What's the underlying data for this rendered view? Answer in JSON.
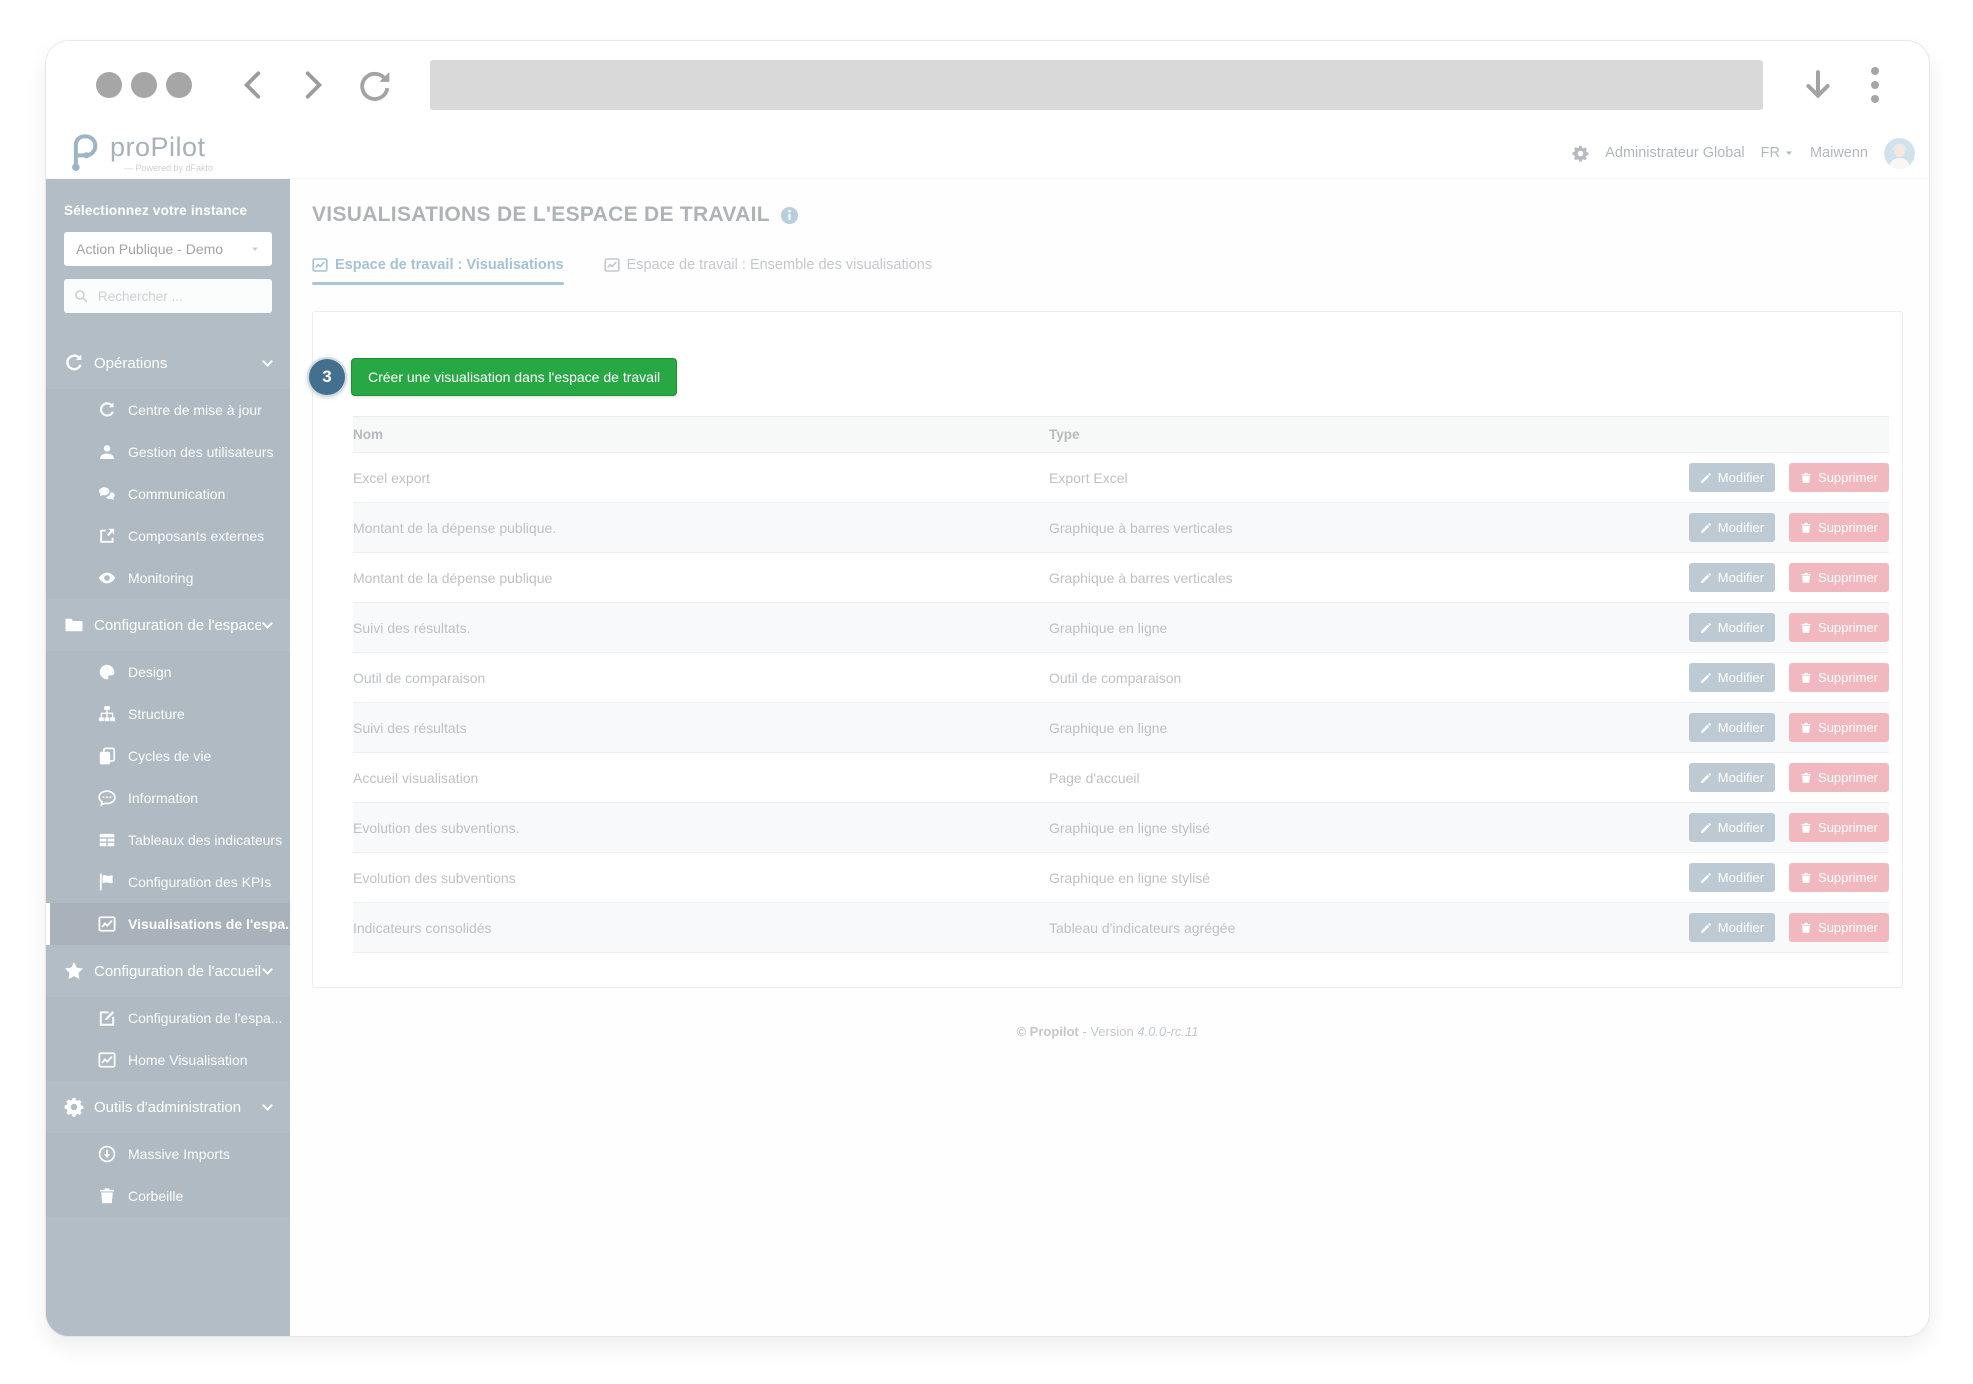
{
  "colors": {
    "green": "#28a745",
    "green-border": "#1f9038",
    "badge": "#44708f",
    "danger": "#e5717f",
    "secondary": "#7a94a8",
    "sidebar": "#657b8d",
    "accent": "#4785ad",
    "underline": "#558fb3"
  },
  "header": {
    "logo_text": "proPilot",
    "logo_tagline": "Powered by dFakto",
    "role_label": "Administrateur Global",
    "lang_label": "FR",
    "user_name": "Maiwenn"
  },
  "sidebar": {
    "instance_label": "Sélectionnez votre instance",
    "instance_value": "Action Publique - Demo",
    "search_placeholder": "Rechercher ...",
    "groups": [
      {
        "label": "Opérations",
        "icon": "refresh",
        "items": [
          {
            "label": "Centre de mise à jour",
            "icon": "update"
          },
          {
            "label": "Gestion des utilisateurs",
            "icon": "user"
          },
          {
            "label": "Communication",
            "icon": "chat"
          },
          {
            "label": "Composants externes",
            "icon": "external"
          },
          {
            "label": "Monitoring",
            "icon": "eye"
          }
        ]
      },
      {
        "label": "Configuration de l'espace de ...",
        "icon": "folder",
        "items": [
          {
            "label": "Design",
            "icon": "palette"
          },
          {
            "label": "Structure",
            "icon": "sitemap"
          },
          {
            "label": "Cycles de vie",
            "icon": "copy"
          },
          {
            "label": "Information",
            "icon": "info-bubble"
          },
          {
            "label": "Tableaux des indicateurs",
            "icon": "table"
          },
          {
            "label": "Configuration des KPIs",
            "icon": "flag"
          },
          {
            "label": "Visualisations de l'espa...",
            "icon": "chart",
            "active": true
          }
        ]
      },
      {
        "label": "Configuration de l'accueil",
        "icon": "star",
        "items": [
          {
            "label": "Configuration de l'espa...",
            "icon": "edit"
          },
          {
            "label": "Home Visualisation",
            "icon": "chart"
          }
        ]
      },
      {
        "label": "Outils d'administration",
        "icon": "gear",
        "items": [
          {
            "label": "Massive Imports",
            "icon": "download-circle"
          },
          {
            "label": "Corbeille",
            "icon": "trash"
          }
        ]
      }
    ]
  },
  "main": {
    "title": "VISUALISATIONS DE L'ESPACE DE TRAVAIL",
    "tabs": [
      {
        "label": "Espace de travail : Visualisations",
        "active": true
      },
      {
        "label": "Espace de travail : Ensemble des visualisations",
        "active": false
      }
    ],
    "step_badge": "3",
    "create_button_label": "Créer une visualisation dans l'espace de travail",
    "table": {
      "col_nom": "Nom",
      "col_type": "Type",
      "modifier_label": "Modifier",
      "supprimer_label": "Supprimer",
      "rows": [
        {
          "nom": "Excel export",
          "type": "Export Excel"
        },
        {
          "nom": "Montant de la dépense publique.",
          "type": "Graphique à barres verticales"
        },
        {
          "nom": "Montant de la dépense publique",
          "type": "Graphique à barres verticales"
        },
        {
          "nom": "Suivi des résultats.",
          "type": "Graphique en ligne"
        },
        {
          "nom": "Outil de comparaison",
          "type": "Outil de comparaison"
        },
        {
          "nom": "Suivi des résultats",
          "type": "Graphique en ligne"
        },
        {
          "nom": "Accueil visualisation",
          "type": "Page d'accueil"
        },
        {
          "nom": "Evolution des subventions.",
          "type": "Graphique en ligne stylisé"
        },
        {
          "nom": "Evolution des subventions",
          "type": "Graphique en ligne stylisé"
        },
        {
          "nom": "Indicateurs consolidés",
          "type": "Tableau d'indicateurs agrégée"
        }
      ]
    },
    "footer": {
      "copyright": "© Propilot",
      "separator": "-",
      "version_label": "Version",
      "version_value": "4.0.0-rc.11"
    }
  }
}
